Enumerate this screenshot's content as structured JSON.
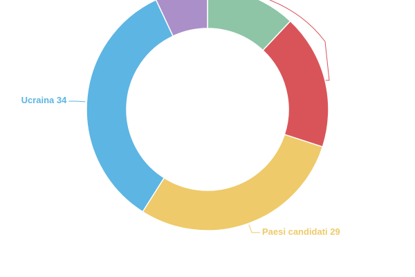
{
  "chart_data": {
    "type": "donut",
    "categories": [
      null,
      null,
      "Paesi candidati",
      "Ucraina",
      null
    ],
    "values": [
      12,
      18,
      29,
      34,
      7
    ],
    "colors": [
      "#8dc5a6",
      "#d95459",
      "#eeca6a",
      "#5db5e3",
      "#ab8fc9"
    ]
  }
}
